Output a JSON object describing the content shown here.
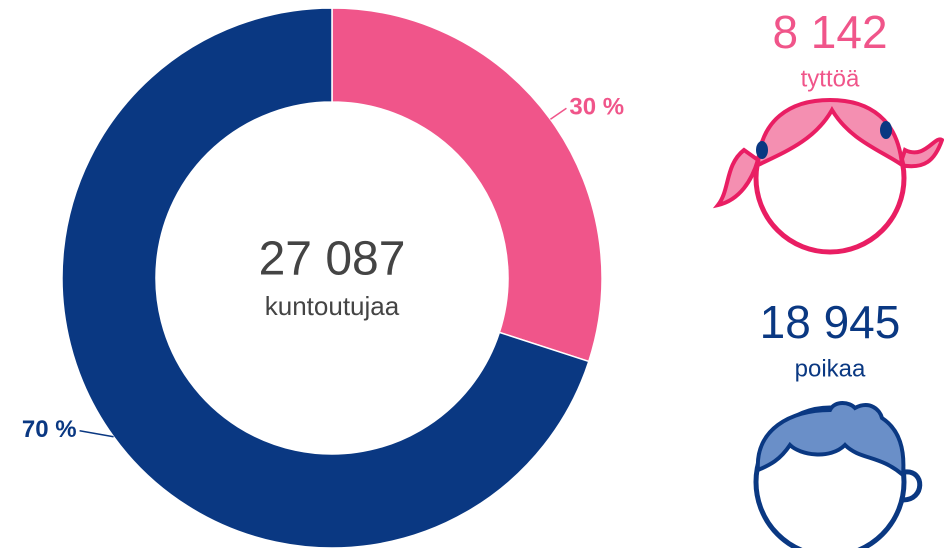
{
  "chart_data": {
    "type": "pie",
    "values": [
      30,
      70
    ],
    "value_labels": [
      "30 %",
      "70 %"
    ],
    "colors": [
      "#f0558a",
      "#0a3882"
    ],
    "center_value": "27 087",
    "center_label": "kuntoutujaa"
  },
  "side": {
    "girls": {
      "count": "8 142",
      "label": "tyttöä"
    },
    "boys": {
      "count": "18 945",
      "label": "poikaa"
    }
  }
}
